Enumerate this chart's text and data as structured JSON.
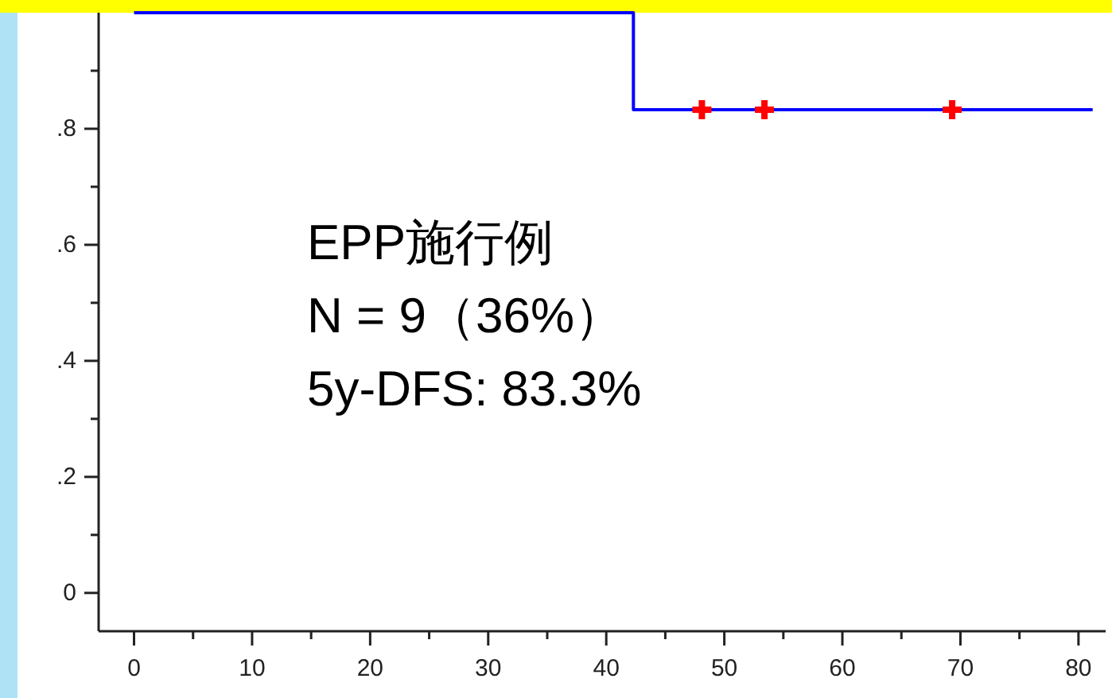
{
  "chart_data": {
    "type": "step",
    "xlim": [
      -3,
      82.3
    ],
    "ylim": [
      -0.066,
      1.0
    ],
    "xticks": [
      0,
      {
        "value": 5,
        "label": null
      },
      10,
      {
        "value": 15,
        "label": null
      },
      20,
      {
        "value": 25,
        "label": null
      },
      30,
      {
        "value": 35,
        "label": null
      },
      40,
      {
        "value": 45,
        "label": null
      },
      50,
      {
        "value": 55,
        "label": null
      },
      60,
      {
        "value": 65,
        "label": null
      },
      70,
      {
        "value": 75,
        "label": null
      },
      80
    ],
    "yticks": [
      0,
      {
        "value": 0.1,
        "label": null
      },
      {
        "value": 0.2,
        "label": ".2"
      },
      {
        "value": 0.3,
        "label": null
      },
      {
        "value": 0.4,
        "label": ".4"
      },
      {
        "value": 0.5,
        "label": null
      },
      {
        "value": 0.6,
        "label": ".6"
      },
      {
        "value": 0.7,
        "label": null
      },
      {
        "value": 0.8,
        "label": ".8"
      },
      {
        "value": 0.9,
        "label": null
      }
    ],
    "series": [
      {
        "color": "#0000ff",
        "x": [
          0,
          42.3,
          81.2
        ],
        "values": [
          1,
          0.833,
          0.833
        ]
      },
      {
        "type": "scatter",
        "color": "#ff0000",
        "marker": "cross",
        "x": [
          48.1,
          53.4,
          69.3
        ],
        "values": [
          0.833,
          0.833,
          0.833
        ]
      }
    ],
    "annotations": [
      "EPP施行例",
      "N = 9（36%）",
      "5y-DFS: 83.3%"
    ],
    "grid": false
  }
}
